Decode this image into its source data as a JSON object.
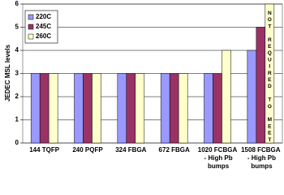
{
  "chart_data": {
    "type": "bar",
    "y_label": "JEDEC MSL levels",
    "categories": [
      "144 TQFP",
      "240 PQFP",
      "324 FBGA",
      "672 FBGA",
      "1020 FCBGA - High Pb bumps",
      "1508 FCBGA - High Pb bumps"
    ],
    "series": [
      {
        "name": "220C",
        "color": "#9999ff",
        "values": [
          3,
          3,
          3,
          3,
          3,
          4
        ]
      },
      {
        "name": "245C",
        "color": "#993366",
        "values": [
          3,
          3,
          3,
          3,
          3,
          5
        ]
      },
      {
        "name": "260C",
        "color": "#ffffcc",
        "values": [
          3,
          3,
          3,
          3,
          4,
          6
        ]
      }
    ],
    "annotation": "NOT REQUIRED TO MEET",
    "ylim": [
      0,
      6
    ],
    "yticks": [
      0,
      1,
      2,
      3,
      4,
      5,
      6
    ],
    "grid": true,
    "legend": "top-left"
  }
}
